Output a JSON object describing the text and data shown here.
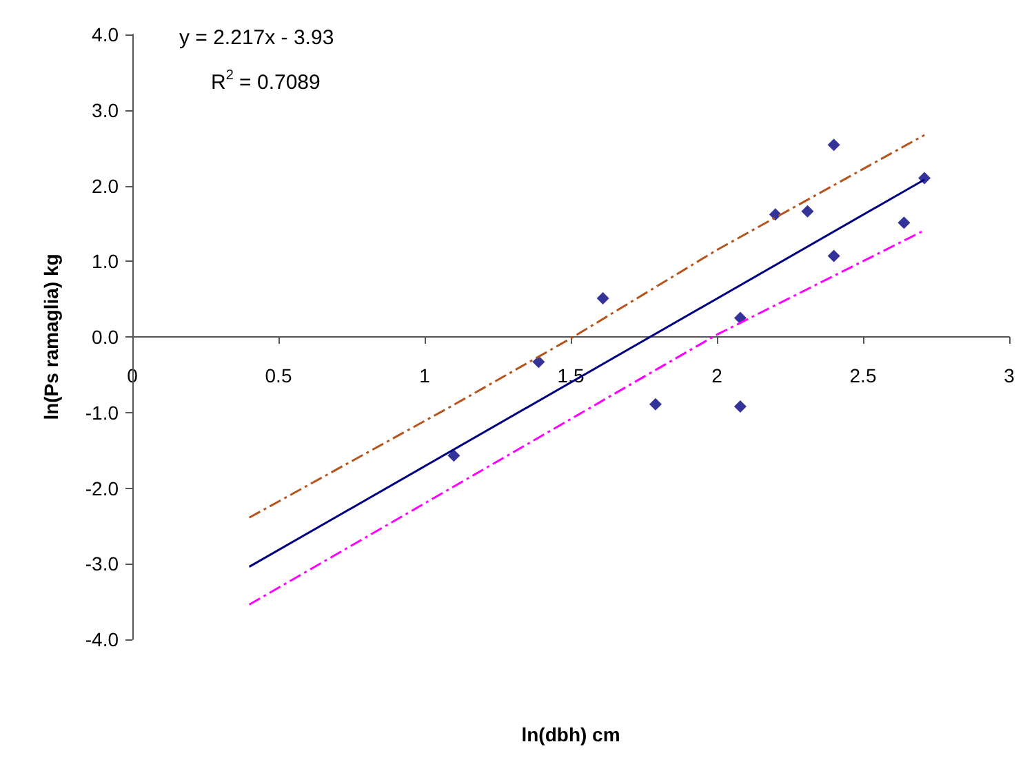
{
  "chart_data": {
    "type": "scatter",
    "xlabel": "ln(dbh) cm",
    "ylabel": "ln(Ps ramaglia) kg",
    "annotations": [
      "y = 2.217x - 3.93",
      "R$^{2}$ = 0.7089"
    ],
    "xlim": [
      0,
      3
    ],
    "xticks": [
      0,
      0.5,
      1,
      1.5,
      2,
      2.5,
      3
    ],
    "ylim": [
      -4,
      4
    ],
    "yticks": [
      {
        "value": -4,
        "label": "-4.0"
      },
      {
        "value": -3,
        "label": "-3.0"
      },
      {
        "value": -2,
        "label": "-2.0"
      },
      {
        "value": -1,
        "label": "-1.0"
      },
      {
        "value": 0,
        "label": "0.0"
      },
      {
        "value": 1,
        "label": "1.0"
      },
      {
        "value": 2,
        "label": "2.0"
      },
      {
        "value": 3,
        "label": "3.0"
      },
      {
        "value": 4,
        "label": "4.0"
      }
    ],
    "grid": false,
    "series": [
      {
        "color": "#000080",
        "marker": "diamond",
        "x": [
          1.1,
          1.39,
          1.61,
          1.79,
          2.08,
          2.08,
          2.2,
          2.31,
          2.4,
          2.4,
          2.64,
          2.71
        ],
        "values": [
          -1.57,
          -0.33,
          0.51,
          -0.89,
          0.25,
          -0.92,
          1.62,
          1.66,
          1.07,
          2.54,
          1.51,
          2.1
        ]
      },
      {
        "type": "line",
        "color": "#000080",
        "marker": "none",
        "line_style": "solid",
        "x": [
          0.4,
          2.71
        ],
        "values": [
          -3.04,
          2.08
        ]
      },
      {
        "type": "line",
        "color": "#b5541c",
        "marker": "none",
        "line_style": "dashed",
        "x": [
          0.4,
          1.09,
          1.5,
          2.0,
          2.71
        ],
        "values": [
          -2.39,
          -0.92,
          -0.02,
          1.15,
          2.67
        ]
      },
      {
        "type": "line",
        "color": "#ff00ff",
        "marker": "none",
        "line_style": "dashed",
        "x": [
          0.4,
          1.09,
          2.0,
          2.71
        ],
        "values": [
          -3.54,
          -2.0,
          0.03,
          1.41
        ]
      }
    ]
  }
}
